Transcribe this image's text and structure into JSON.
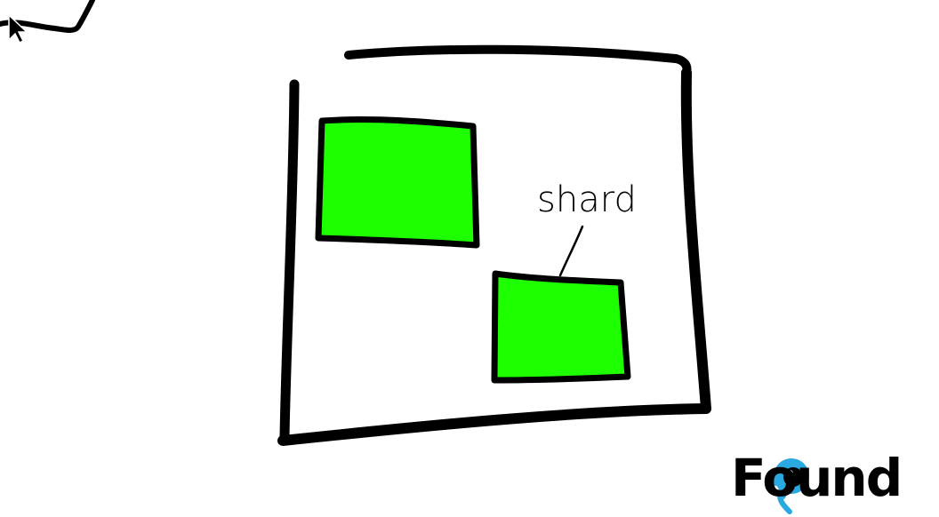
{
  "diagram": {
    "outer_box": {
      "stroke_color": "#000000"
    },
    "shards": [
      {
        "fill_color": "#1EFF00"
      },
      {
        "fill_color": "#1EFF00"
      }
    ],
    "annotation": {
      "text": "shard"
    }
  },
  "cursor": {
    "icon": "mouse-pointer-icon"
  },
  "logo": {
    "text": "Found",
    "accent_color": "#2AA8E0"
  }
}
